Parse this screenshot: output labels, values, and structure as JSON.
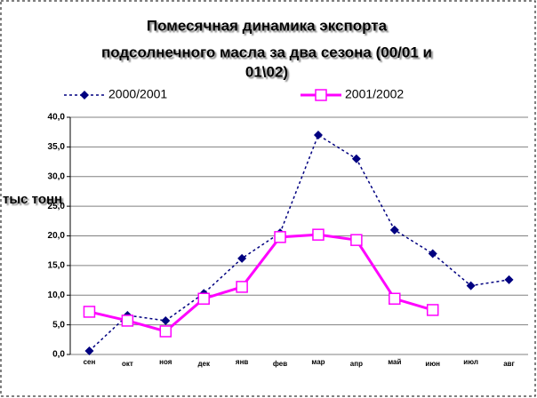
{
  "chart_data": {
    "type": "line",
    "title": [
      "Помесячная динамика экспорта",
      "подсолнечного масла  за два сезона (00/01 и",
      "01\\02)"
    ],
    "y_label": "тыс тонн",
    "categories": [
      "сен",
      "окт",
      "ноя",
      "дек",
      "янв",
      "фев",
      "мар",
      "апр",
      "май",
      "июн",
      "июл",
      "авг"
    ],
    "series": [
      {
        "name": "2000/2001",
        "color": "#000080",
        "values": [
          0.6,
          6.6,
          5.7,
          10.3,
          16.2,
          20.5,
          37.0,
          33.0,
          21.0,
          17.0,
          11.6,
          12.6
        ]
      },
      {
        "name": "2001/2002",
        "color": "#ff00ff",
        "values": [
          7.2,
          5.7,
          3.9,
          9.4,
          11.4,
          19.8,
          20.2,
          19.3,
          9.4,
          7.5,
          null,
          null
        ]
      }
    ],
    "ylim": [
      0,
      40
    ],
    "yticks": [
      {
        "value": 0,
        "label": "0,0"
      },
      {
        "value": 5,
        "label": "5,0"
      },
      {
        "value": 10,
        "label": "10,0"
      },
      {
        "value": 15,
        "label": "15,0"
      },
      {
        "value": 20,
        "label": "20,0"
      },
      {
        "value": 25,
        "label": "25,0"
      },
      {
        "value": 30,
        "label": "30,0"
      },
      {
        "value": 35,
        "label": "35,0"
      },
      {
        "value": 40,
        "label": "40,0"
      }
    ],
    "grid": true
  }
}
